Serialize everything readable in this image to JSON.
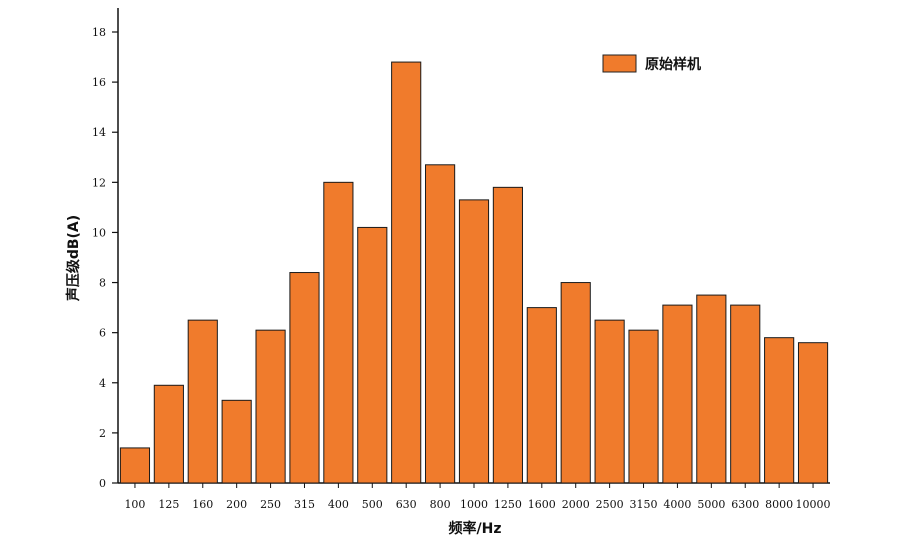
{
  "chart_data": {
    "type": "bar",
    "categories": [
      "100",
      "125",
      "160",
      "200",
      "250",
      "315",
      "400",
      "500",
      "630",
      "800",
      "1000",
      "1250",
      "1600",
      "2000",
      "2500",
      "3150",
      "4000",
      "5000",
      "6300",
      "8000",
      "10000"
    ],
    "series": [
      {
        "name": "原始样机",
        "values": [
          1.4,
          3.9,
          6.5,
          3.3,
          6.1,
          8.4,
          12.0,
          10.2,
          16.8,
          12.7,
          11.3,
          11.8,
          7.0,
          8.0,
          6.5,
          6.1,
          7.1,
          7.5,
          7.1,
          5.8,
          5.6
        ],
        "color": "#f07b2c"
      }
    ],
    "xlabel": "频率/Hz",
    "ylabel": "声压级dB(A)",
    "ylim": [
      0,
      18
    ],
    "yticks": [
      0,
      2,
      4,
      6,
      8,
      10,
      12,
      14,
      16,
      18
    ],
    "grid": false,
    "legend_position": "top-right"
  }
}
